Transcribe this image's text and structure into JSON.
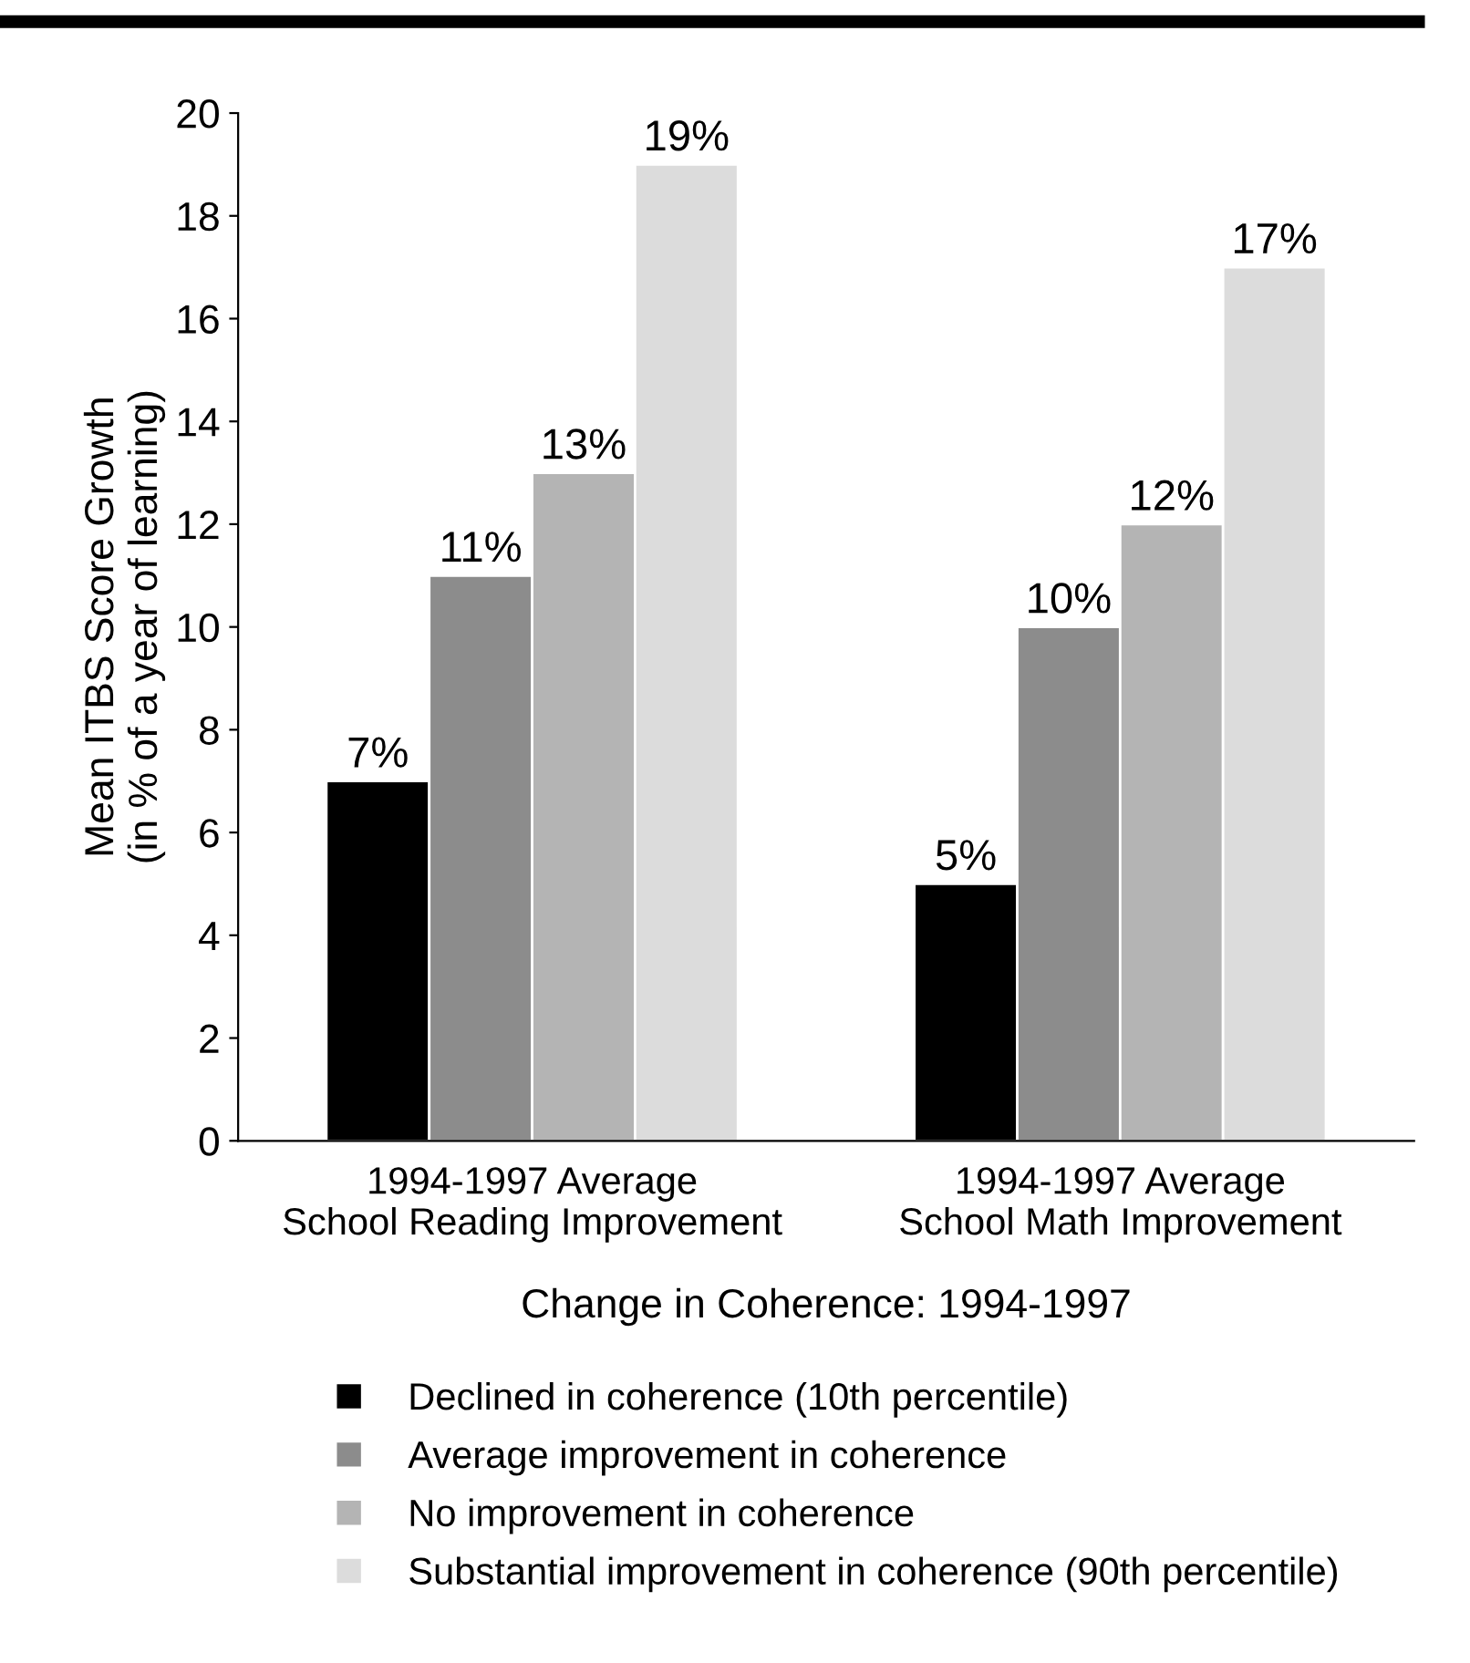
{
  "chart_data": {
    "type": "bar",
    "ylabel": "Mean ITBS Score Growth\n(in % of a year of learning)",
    "xlabel": "Change in Coherence: 1994-1997",
    "categories": [
      "1994-1997 Average\nSchool Reading Improvement",
      "1994-1997 Average\nSchool Math Improvement"
    ],
    "series": [
      {
        "name": "Declined in coherence (10th percentile)",
        "color": "#000000",
        "values": [
          7,
          5
        ],
        "value_labels": [
          "7%",
          "5%"
        ]
      },
      {
        "name": "Average improvement in coherence",
        "color": "#8c8c8c",
        "values": [
          11,
          10
        ],
        "value_labels": [
          "11%",
          "10%"
        ]
      },
      {
        "name": "No improvement in coherence",
        "color": "#b4b4b4",
        "values": [
          13,
          12
        ],
        "value_labels": [
          "13%",
          "12%"
        ]
      },
      {
        "name": "Substantial improvement in coherence (90th percentile)",
        "color": "#dcdcdc",
        "values": [
          19,
          17
        ],
        "value_labels": [
          "19%",
          "17%"
        ]
      }
    ],
    "ylim": [
      0,
      20
    ],
    "yticks": [
      0,
      2,
      4,
      6,
      8,
      10,
      12,
      14,
      16,
      18,
      20
    ],
    "grid": false,
    "legend": "bottom"
  }
}
